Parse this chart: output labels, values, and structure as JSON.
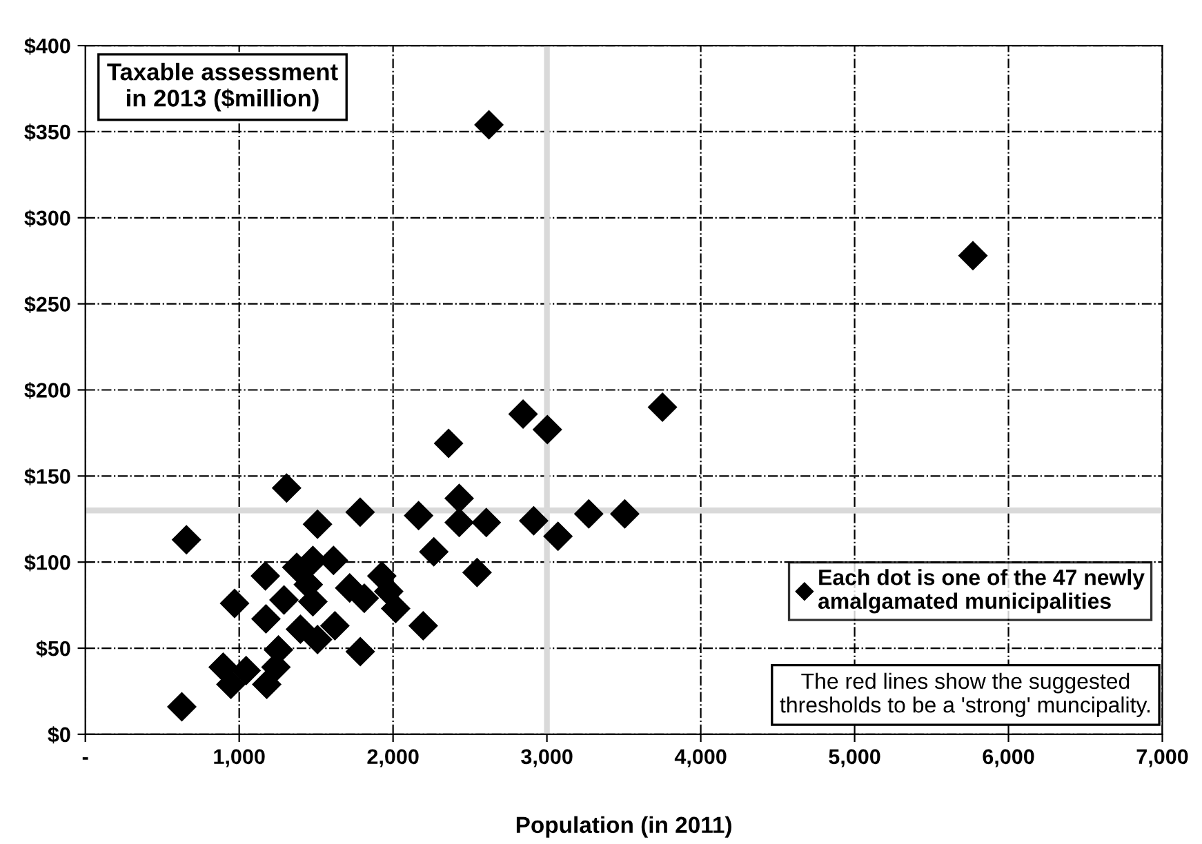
{
  "chart_data": {
    "type": "scatter",
    "title": "Taxable assessment\nin 2013 ($million)",
    "xlabel": "Population (in 2011)",
    "series": [
      {
        "name": "Each dot is one of the 47 newly\namalgamated municipalities",
        "color": "#000000",
        "x": [
          2361,
          1308,
          1786,
          2166,
          2430,
          2430,
          2606,
          1509,
          657,
          2265,
          2546,
          1613,
          1479,
          1374,
          1170,
          1927,
          1449,
          1718,
          1813,
          1972,
          2017,
          1479,
          1291,
          970,
          1174,
          2196,
          1622,
          1398,
          1509,
          1787,
          1255,
          1239,
          896,
          1045,
          946,
          1179,
          627,
          2623,
          2845,
          3003,
          3751,
          2914,
          3272,
          3506,
          3072,
          5769
        ],
        "values": [
          169,
          143,
          129,
          127,
          137,
          123,
          123,
          122,
          113,
          106,
          94,
          101,
          101,
          97,
          92,
          92,
          87,
          85,
          79,
          83,
          73,
          77,
          78,
          76,
          67,
          63,
          63,
          61,
          55,
          48,
          49,
          39,
          39,
          37,
          29,
          29,
          16,
          354,
          186,
          177,
          190,
          124,
          128,
          128,
          115,
          278
        ]
      }
    ],
    "xlim": [
      0,
      7000
    ],
    "ylim": [
      0,
      400
    ],
    "xticks": [
      {
        "value": 0,
        "label": "-"
      },
      {
        "value": 1000,
        "label": "1,000"
      },
      {
        "value": 2000,
        "label": "2,000"
      },
      {
        "value": 3000,
        "label": "3,000"
      },
      {
        "value": 4000,
        "label": "4,000"
      },
      {
        "value": 5000,
        "label": "5,000"
      },
      {
        "value": 6000,
        "label": "6,000"
      },
      {
        "value": 7000,
        "label": "7,000"
      }
    ],
    "yticks": [
      {
        "value": 0,
        "label": "$0"
      },
      {
        "value": 50,
        "label": "$50"
      },
      {
        "value": 100,
        "label": "$100"
      },
      {
        "value": 150,
        "label": "$150"
      },
      {
        "value": 200,
        "label": "$200"
      },
      {
        "value": 250,
        "label": "$250"
      },
      {
        "value": 300,
        "label": "$300"
      },
      {
        "value": 350,
        "label": "$350"
      },
      {
        "value": 400,
        "label": "$400"
      }
    ],
    "ref_lines": [
      {
        "axis": "x",
        "value": 3000,
        "color": "#d9d9d9"
      },
      {
        "axis": "y",
        "value": 130,
        "color": "#d9d9d9"
      }
    ],
    "annotations": [
      "The red lines show the suggested\nthresholds to be a 'strong' muncipality."
    ],
    "grid": true,
    "legend": "lower right",
    "marker": "diamond"
  }
}
